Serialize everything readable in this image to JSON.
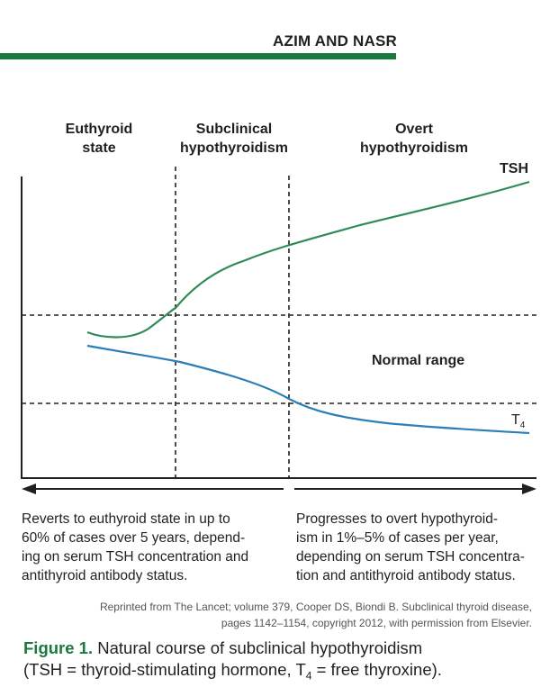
{
  "header": {
    "journal_title": "AZIM AND NASR",
    "rule_color": "#1a7a3e"
  },
  "phases": [
    {
      "line1": "Euthyroid",
      "line2": "state"
    },
    {
      "line1": "Subclinical",
      "line2": "hypothyroidism"
    },
    {
      "line1": "Overt",
      "line2": "hypothyroidism"
    }
  ],
  "curves": {
    "tsh": {
      "label": "TSH",
      "color": "#2e8b57"
    },
    "t4": {
      "label": "T",
      "subscript": "4",
      "color": "#2a7fb8"
    }
  },
  "normal_range_label": "Normal range",
  "captions": {
    "left": [
      "Reverts to euthyroid state in up to",
      "60% of cases over 5 years, depend-",
      "ing on serum TSH concentration and",
      "antithyroid antibody status."
    ],
    "right": [
      "Progresses to overt hypothyroid-",
      "ism in 1%–5% of cases per year,",
      "depending on serum TSH concentra-",
      "tion and antithyroid antibody status."
    ]
  },
  "credit": [
    "Reprinted from The Lancet; volume 379, Cooper DS, Biondi B. Subclinical thyroid disease,",
    "pages 1142–1154, copyright 2012, with permission from Elsevier."
  ],
  "figure_caption": {
    "label": "Figure 1.",
    "line1_rest": " Natural course of subclinical hypothyroidism",
    "line2_a": "(TSH = thyroid-stimulating hormone, T",
    "line2_sub": "4",
    "line2_b": " = free thyroxine)."
  }
}
